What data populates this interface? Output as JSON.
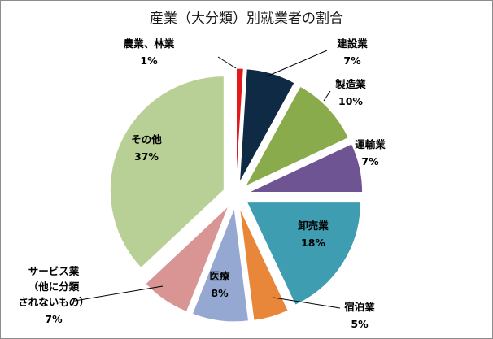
{
  "chart_data": {
    "type": "pie",
    "title": "産業（大分類）別就業者の割合",
    "slices": [
      {
        "label_lines": [
          "農業、林業"
        ],
        "value": 1,
        "value_text": "1%",
        "color": "#e31a1c"
      },
      {
        "label_lines": [
          "建設業"
        ],
        "value": 7,
        "value_text": "7%",
        "color": "#0f2a44"
      },
      {
        "label_lines": [
          "製造業"
        ],
        "value": 10,
        "value_text": "10%",
        "color": "#8aab4b"
      },
      {
        "label_lines": [
          "運輸業"
        ],
        "value": 7,
        "value_text": "7%",
        "color": "#6e5493"
      },
      {
        "label_lines": [
          "卸売業"
        ],
        "value": 18,
        "value_text": "18%",
        "color": "#3e9db1"
      },
      {
        "label_lines": [
          "宿泊業"
        ],
        "value": 5,
        "value_text": "5%",
        "color": "#e8863a"
      },
      {
        "label_lines": [
          "医療"
        ],
        "value": 8,
        "value_text": "8%",
        "color": "#94a8d2"
      },
      {
        "label_lines": [
          "サービス業",
          "（他に分類",
          "されないもの）"
        ],
        "value": 7,
        "value_text": "7%",
        "color": "#d99594"
      },
      {
        "label_lines": [
          "その他"
        ],
        "value": 37,
        "value_text": "37%",
        "color": "#b8cf95"
      }
    ]
  }
}
